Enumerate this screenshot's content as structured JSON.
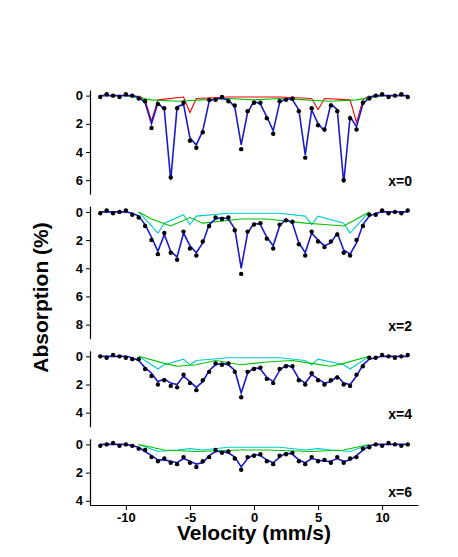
{
  "chart_data": {
    "type": "line",
    "x_label": "Velocity (mm/s)",
    "y_label": "Absorption (%)",
    "xlim": [
      -12.8,
      12.8
    ],
    "xticks": [
      -10,
      -5,
      0,
      5,
      10
    ],
    "x": [
      -12,
      -11.5,
      -11,
      -10.5,
      -10,
      -9.5,
      -9,
      -8.5,
      -8,
      -7.5,
      -7,
      -6.5,
      -6,
      -5.5,
      -5,
      -4.5,
      -4,
      -3.5,
      -3,
      -2.5,
      -2,
      -1.5,
      -1,
      -0.5,
      0,
      0.5,
      1,
      1.5,
      2,
      2.5,
      3,
      3.5,
      4,
      4.5,
      5,
      5.5,
      6,
      6.5,
      7,
      7.5,
      8,
      8.5,
      9,
      9.5,
      10,
      10.5,
      11,
      11.5,
      12
    ],
    "panels": [
      {
        "annotation": "x=0",
        "ylim": [
          -0.4,
          7
        ],
        "yticks": [
          0,
          2,
          4,
          6
        ],
        "series": [
          {
            "type": "scatter",
            "color": "#000000",
            "marker": "circle",
            "values": [
              0.1,
              -0.1,
              0,
              0.1,
              -0.1,
              0,
              0.2,
              0.4,
              2.3,
              0.6,
              0.9,
              5.8,
              0.9,
              0.5,
              3.2,
              3.7,
              2.6,
              0.3,
              0.3,
              0.1,
              0.4,
              0.7,
              3.8,
              1.1,
              0.5,
              0.5,
              1.6,
              2.7,
              0.4,
              0.3,
              0.2,
              1.1,
              4.4,
              0.9,
              2.1,
              2.4,
              0.7,
              1.1,
              6.0,
              1.6,
              2.4,
              0.5,
              0.2,
              0,
              -0.1,
              0.1,
              0,
              -0.1,
              0.1
            ]
          },
          {
            "type": "line",
            "color": "#ff0000",
            "x": [
              -9,
              -8.5,
              -8,
              -7.5,
              -5.5,
              -5,
              -4.5,
              -2,
              2,
              4.5,
              5,
              5.5,
              7.5,
              8,
              8.5,
              9
            ],
            "values": [
              0,
              0.3,
              1.8,
              0.3,
              0.1,
              1.2,
              0.2,
              0.1,
              0.1,
              0.2,
              1.0,
              0.2,
              0.3,
              1.9,
              0.3,
              0
            ]
          },
          {
            "type": "line",
            "color": "#00c000",
            "x": [
              -10,
              -8,
              -6,
              -4,
              -2,
              0,
              2,
              4,
              6,
              8,
              10
            ],
            "values": [
              0,
              0.3,
              0.4,
              0.3,
              0.2,
              0.3,
              0.2,
              0.3,
              0.4,
              0.3,
              0
            ]
          },
          {
            "type": "line",
            "color": "#1a1acc",
            "values": [
              0,
              0,
              0,
              0,
              0,
              0,
              0.1,
              0.5,
              2.0,
              0.5,
              1.0,
              6.0,
              0.8,
              0.6,
              3.0,
              3.5,
              2.5,
              0.4,
              0.2,
              0.2,
              0.3,
              0.8,
              3.5,
              1.2,
              0.4,
              0.6,
              1.5,
              2.5,
              0.5,
              0.2,
              0.3,
              1.0,
              4.2,
              1.0,
              2.0,
              2.5,
              0.6,
              1.0,
              6.2,
              1.5,
              2.2,
              0.6,
              0.1,
              0,
              0,
              0,
              0,
              0,
              0
            ]
          }
        ]
      },
      {
        "annotation": "x=2",
        "ylim": [
          -0.4,
          9
        ],
        "yticks": [
          0,
          2,
          4,
          6,
          8
        ],
        "series": [
          {
            "type": "scatter",
            "color": "#000000",
            "marker": "circle",
            "values": [
              0.1,
              -0.1,
              0.1,
              0,
              -0.1,
              0.2,
              0.4,
              1.0,
              2.0,
              3.0,
              1.5,
              2.9,
              3.4,
              1.4,
              2.6,
              3.1,
              2.1,
              1.0,
              0.4,
              0.5,
              0.4,
              1.3,
              4.4,
              1.4,
              0.9,
              0.8,
              1.9,
              2.6,
              0.9,
              0.6,
              0.7,
              2.3,
              3.1,
              1.4,
              2.1,
              2.5,
              2.1,
              1.6,
              2.9,
              3.1,
              2.0,
              1.0,
              0.2,
              0.2,
              -0.1,
              0.1,
              0,
              0.1,
              -0.1
            ]
          },
          {
            "type": "line",
            "color": "#00cccc",
            "x": [
              -9,
              -8,
              -7.5,
              -7,
              -5.5,
              -5,
              -4.5,
              -2,
              2,
              4,
              4.5,
              5,
              7,
              7.5,
              8,
              9
            ],
            "values": [
              0,
              1.0,
              1.5,
              0.8,
              0.2,
              0.9,
              0.3,
              0.1,
              0.1,
              0.3,
              0.9,
              0.3,
              0.8,
              1.5,
              1.0,
              0
            ]
          },
          {
            "type": "line",
            "color": "#00c000",
            "x": [
              -9,
              -8,
              -6.5,
              -5,
              -4,
              -1,
              1,
              4,
              5.5,
              7,
              8,
              9
            ],
            "values": [
              0,
              0.5,
              1.0,
              0.4,
              0.8,
              0.5,
              0.5,
              0.8,
              0.9,
              1.0,
              0.5,
              0
            ]
          },
          {
            "type": "line",
            "color": "#1a1acc",
            "values": [
              0,
              0,
              0,
              0,
              0,
              0.1,
              0.3,
              0.9,
              1.8,
              2.8,
              1.6,
              2.8,
              3.2,
              1.5,
              2.4,
              2.9,
              2.2,
              0.9,
              0.5,
              0.4,
              0.5,
              1.2,
              4.0,
              1.5,
              0.8,
              0.9,
              1.8,
              2.4,
              1.0,
              0.5,
              0.8,
              2.2,
              2.9,
              1.5,
              2.0,
              2.4,
              2.2,
              1.5,
              2.7,
              3.0,
              2.2,
              0.9,
              0.3,
              0.1,
              0,
              0,
              0,
              0,
              0
            ]
          }
        ]
      },
      {
        "annotation": "x=4",
        "ylim": [
          -0.4,
          5
        ],
        "yticks": [
          0,
          2,
          4
        ],
        "series": [
          {
            "type": "scatter",
            "color": "#000000",
            "marker": "circle",
            "values": [
              0,
              0.1,
              -0.1,
              0,
              0.1,
              0.2,
              0.2,
              0.9,
              1.4,
              2.0,
              1.7,
              2.1,
              2.2,
              1.3,
              1.9,
              2.4,
              1.7,
              1.1,
              0.5,
              0.6,
              0.5,
              1.1,
              2.9,
              1.1,
              0.9,
              0.8,
              1.6,
              1.9,
              0.9,
              0.7,
              0.7,
              1.7,
              2.0,
              1.2,
              1.7,
              2.0,
              1.7,
              1.5,
              2.0,
              2.1,
              1.3,
              0.7,
              0.1,
              0.1,
              -0.1,
              0,
              0.1,
              0,
              -0.1
            ]
          },
          {
            "type": "line",
            "color": "#00cccc",
            "x": [
              -9,
              -8,
              -7.5,
              -7,
              -5.5,
              -5,
              -4.5,
              -2,
              2,
              4,
              4.5,
              5,
              7,
              7.5,
              8,
              9
            ],
            "values": [
              0,
              0.6,
              0.9,
              0.6,
              0.2,
              0.6,
              0.3,
              0.1,
              0.1,
              0.3,
              0.6,
              0.2,
              0.6,
              0.9,
              0.6,
              0
            ]
          },
          {
            "type": "line",
            "color": "#00c000",
            "x": [
              -9,
              -7,
              -6,
              -4.5,
              -3,
              -1,
              1,
              3,
              4.5,
              6,
              7,
              9
            ],
            "values": [
              0,
              0.5,
              0.7,
              0.6,
              0.3,
              0.6,
              0.4,
              0.3,
              0.5,
              0.7,
              0.5,
              0
            ]
          },
          {
            "type": "line",
            "color": "#1a1acc",
            "values": [
              0,
              0,
              0,
              0,
              0,
              0.1,
              0.3,
              0.8,
              1.2,
              1.8,
              1.6,
              1.9,
              2.0,
              1.4,
              1.8,
              2.2,
              1.8,
              1.0,
              0.6,
              0.5,
              0.6,
              1.0,
              2.6,
              1.2,
              0.8,
              0.9,
              1.5,
              1.8,
              1.0,
              0.6,
              0.8,
              1.6,
              1.9,
              1.3,
              1.6,
              1.9,
              1.8,
              1.4,
              1.9,
              2.0,
              1.4,
              0.6,
              0.2,
              0.1,
              0,
              0,
              0,
              0,
              0
            ]
          }
        ]
      },
      {
        "annotation": "x=6",
        "ylim": [
          -0.4,
          4.3
        ],
        "yticks": [
          0,
          2,
          4
        ],
        "series": [
          {
            "type": "scatter",
            "color": "#000000",
            "marker": "circle",
            "values": [
              0.1,
              0,
              -0.1,
              0.1,
              0,
              0.1,
              0.3,
              0.4,
              0.9,
              1.2,
              1.0,
              1.3,
              1.4,
              0.9,
              1.3,
              1.6,
              1.2,
              0.9,
              0.4,
              0.6,
              0.5,
              1.0,
              1.8,
              0.9,
              0.8,
              0.7,
              1.2,
              1.4,
              0.8,
              0.7,
              0.6,
              1.2,
              1.4,
              0.9,
              1.2,
              1.1,
              1.3,
              0.9,
              1.3,
              1.0,
              0.9,
              0.3,
              0.2,
              0,
              0.1,
              -0.1,
              0,
              0.1,
              0
            ]
          },
          {
            "type": "line",
            "color": "#00cccc",
            "x": [
              -9,
              -7.5,
              -6,
              -5,
              -4,
              -2,
              0,
              2,
              4,
              5,
              6,
              7.5,
              9
            ],
            "values": [
              0,
              0.5,
              0.4,
              0.3,
              0.4,
              0.2,
              0.2,
              0.2,
              0.4,
              0.3,
              0.4,
              0.5,
              0
            ]
          },
          {
            "type": "line",
            "color": "#00c000",
            "x": [
              -9,
              -7,
              -4.5,
              -1,
              1,
              4.5,
              7,
              9
            ],
            "values": [
              0,
              0.4,
              0.5,
              0.4,
              0.4,
              0.5,
              0.4,
              0
            ]
          },
          {
            "type": "line",
            "color": "#1a1acc",
            "values": [
              0,
              0,
              0,
              0,
              0,
              0.1,
              0.2,
              0.5,
              0.8,
              1.1,
              1.1,
              1.2,
              1.3,
              1.0,
              1.2,
              1.4,
              1.3,
              0.8,
              0.5,
              0.5,
              0.6,
              0.9,
              1.6,
              1.0,
              0.7,
              0.8,
              1.1,
              1.3,
              0.9,
              0.6,
              0.7,
              1.1,
              1.3,
              1.0,
              1.1,
              1.2,
              1.2,
              1.0,
              1.2,
              1.1,
              0.8,
              0.4,
              0.1,
              0,
              0,
              0,
              0,
              0,
              0
            ]
          }
        ]
      }
    ]
  }
}
